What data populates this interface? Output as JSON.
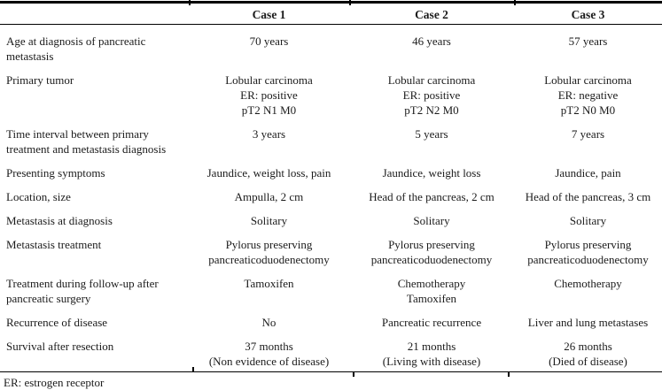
{
  "page": {
    "background": "#ffffff",
    "text_color": "#1b1b1b",
    "rule_color": "#000000"
  },
  "table": {
    "columns": [
      "Case 1",
      "Case 2",
      "Case 3"
    ],
    "rows": [
      {
        "label": [
          "Age at diagnosis of pancreatic",
          "metastasis"
        ],
        "cases": [
          [
            "70 years"
          ],
          [
            "46 years"
          ],
          [
            "57 years"
          ]
        ]
      },
      {
        "label": [
          "Primary tumor"
        ],
        "cases": [
          [
            "Lobular carcinoma",
            "ER: positive",
            "pT2 N1 M0"
          ],
          [
            "Lobular carcinoma",
            "ER: positive",
            "pT2 N2 M0"
          ],
          [
            "Lobular carcinoma",
            "ER: negative",
            "pT2 N0 M0"
          ]
        ]
      },
      {
        "label": [
          "Time interval between primary",
          "treatment and metastasis diagnosis"
        ],
        "cases": [
          [
            "3 years"
          ],
          [
            "5 years"
          ],
          [
            "7 years"
          ]
        ]
      },
      {
        "label": [
          "Presenting symptoms"
        ],
        "cases": [
          [
            "Jaundice, weight loss, pain"
          ],
          [
            "Jaundice, weight loss"
          ],
          [
            "Jaundice, pain"
          ]
        ]
      },
      {
        "label": [
          "Location, size"
        ],
        "cases": [
          [
            "Ampulla, 2 cm"
          ],
          [
            "Head of the pancreas, 2 cm"
          ],
          [
            "Head of the pancreas, 3 cm"
          ]
        ]
      },
      {
        "label": [
          "Metastasis at diagnosis"
        ],
        "cases": [
          [
            "Solitary"
          ],
          [
            "Solitary"
          ],
          [
            "Solitary"
          ]
        ]
      },
      {
        "label": [
          "Metastasis treatment"
        ],
        "cases": [
          [
            "Pylorus preserving",
            "pancreaticoduodenectomy"
          ],
          [
            "Pylorus preserving",
            "pancreaticoduodenectomy"
          ],
          [
            "Pylorus preserving",
            "pancreaticoduodenectomy"
          ]
        ]
      },
      {
        "label": [
          "Treatment during follow-up after",
          "pancreatic surgery"
        ],
        "cases": [
          [
            "Tamoxifen"
          ],
          [
            "Chemotherapy",
            "Tamoxifen"
          ],
          [
            "Chemotherapy"
          ]
        ]
      },
      {
        "label": [
          "Recurrence of disease"
        ],
        "cases": [
          [
            "No"
          ],
          [
            "Pancreatic recurrence"
          ],
          [
            "Liver and lung metastases"
          ]
        ]
      },
      {
        "label": [
          "Survival after resection"
        ],
        "cases": [
          [
            "37 months",
            "(Non evidence of disease)"
          ],
          [
            "21 months",
            "(Living with disease)"
          ],
          [
            "26 months",
            "(Died of disease)"
          ]
        ]
      }
    ],
    "footnote": "ER: estrogen receptor"
  }
}
